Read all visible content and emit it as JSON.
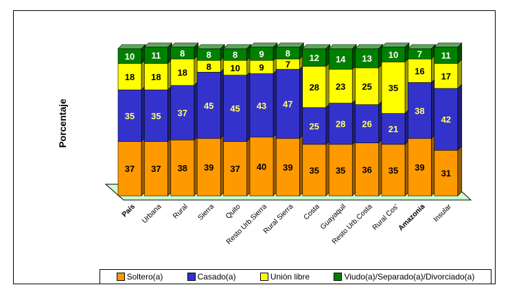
{
  "chart_data": {
    "type": "bar",
    "stacked": true,
    "three_d": true,
    "ylabel": "Porcentaje",
    "categories": [
      "País",
      "Urbana",
      "Rural",
      "Sierra",
      "Quito",
      "Resto Urb.Sierra",
      "Rural Sierra",
      "Costa",
      "Guayaquil",
      "Resto Urb.Costa",
      "Rural Cos'",
      "Amazonia",
      "Insular"
    ],
    "series": [
      {
        "name": "Soltero(a)",
        "color": "#ff9900",
        "values": [
          37,
          37,
          38,
          39,
          37,
          40,
          39,
          35,
          35,
          36,
          35,
          39,
          31
        ]
      },
      {
        "name": "Casado(a)",
        "color": "#3333cc",
        "values": [
          35,
          35,
          37,
          45,
          45,
          43,
          47,
          25,
          28,
          26,
          21,
          38,
          42
        ]
      },
      {
        "name": "Unión libre",
        "color": "#ffff00",
        "values": [
          18,
          18,
          18,
          8,
          10,
          9,
          7,
          28,
          23,
          25,
          35,
          16,
          17
        ]
      },
      {
        "name": "Viudo(a)/Separado(a)/Divorciado(a)",
        "color": "#008000",
        "values": [
          10,
          11,
          8,
          8,
          8,
          9,
          8,
          12,
          14,
          13,
          10,
          7,
          11
        ]
      }
    ],
    "legend_position": "bottom",
    "grid": false
  }
}
